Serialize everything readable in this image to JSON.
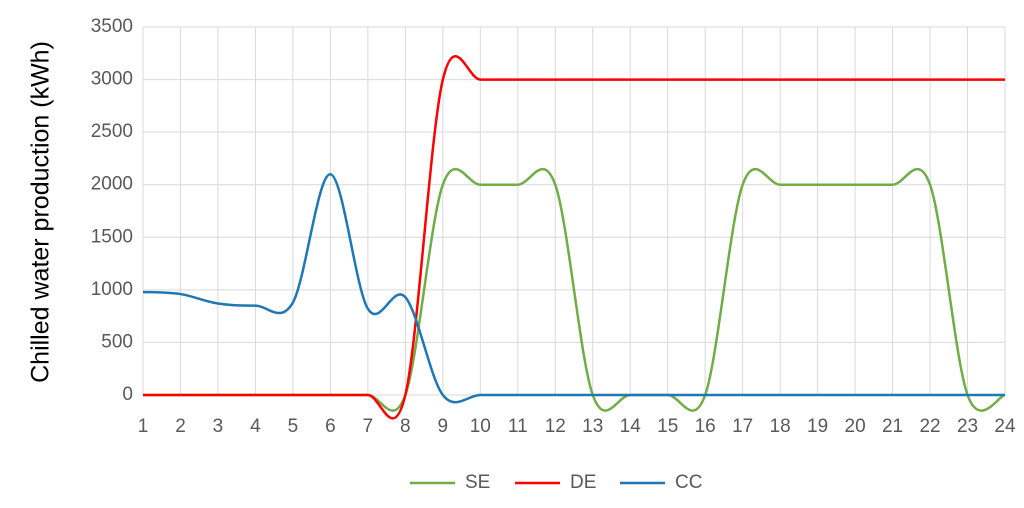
{
  "chart_data": {
    "type": "line",
    "y_label": "Chilled water production (kWh)",
    "x": [
      1,
      2,
      3,
      4,
      5,
      6,
      7,
      8,
      9,
      10,
      11,
      12,
      13,
      14,
      15,
      16,
      17,
      18,
      19,
      20,
      21,
      22,
      23,
      24
    ],
    "series": [
      {
        "name": "SE",
        "color": "#70ad47",
        "values": [
          0,
          0,
          0,
          0,
          0,
          0,
          0,
          0,
          2000,
          2000,
          2000,
          2000,
          0,
          0,
          0,
          0,
          2000,
          2000,
          2000,
          2000,
          2000,
          2000,
          0,
          0
        ]
      },
      {
        "name": "DE",
        "color": "#ff0000",
        "values": [
          0,
          0,
          0,
          0,
          0,
          0,
          0,
          0,
          3000,
          3000,
          3000,
          3000,
          3000,
          3000,
          3000,
          3000,
          3000,
          3000,
          3000,
          3000,
          3000,
          3000,
          3000,
          3000
        ]
      },
      {
        "name": "CC",
        "color": "#1f77b4",
        "values": [
          980,
          960,
          870,
          850,
          880,
          2100,
          820,
          930,
          0,
          0,
          0,
          0,
          0,
          0,
          0,
          0,
          0,
          0,
          0,
          0,
          0,
          0,
          0,
          0
        ]
      }
    ],
    "xlim": [
      1,
      24
    ],
    "xticks": [
      1,
      2,
      3,
      4,
      5,
      6,
      7,
      8,
      9,
      10,
      11,
      12,
      13,
      14,
      15,
      16,
      17,
      18,
      19,
      20,
      21,
      22,
      23,
      24
    ],
    "ylim": [
      0,
      3500
    ],
    "yticks": [
      0,
      500,
      1000,
      1500,
      2000,
      2500,
      3000,
      3500
    ],
    "grid": true,
    "smooth": true,
    "legend": "bottom"
  }
}
